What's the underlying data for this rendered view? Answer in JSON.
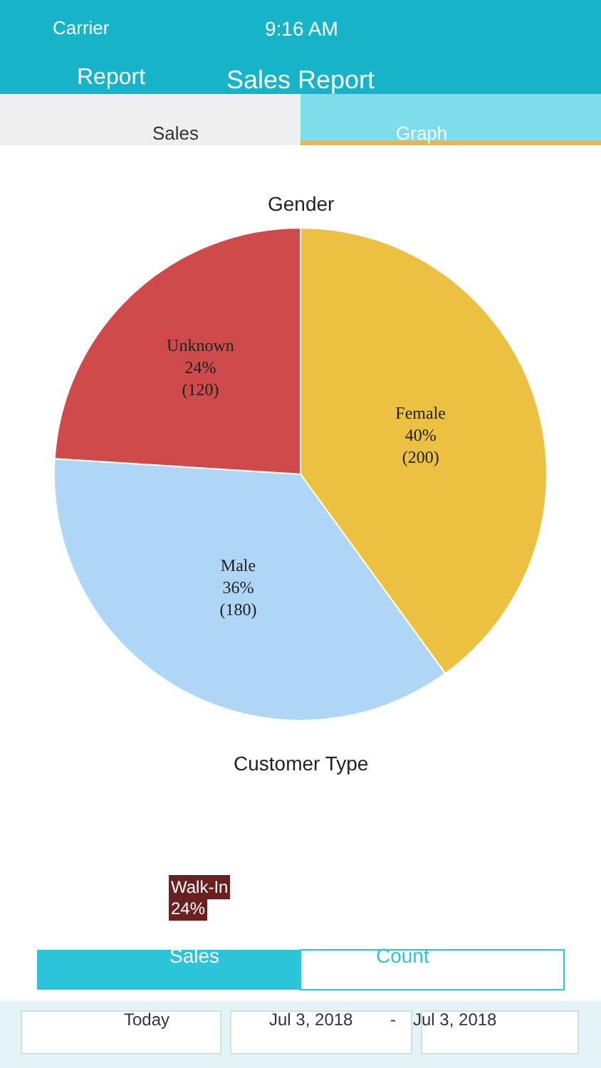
{
  "chart_data": [
    {
      "type": "other",
      "title": "Sales Report",
      "annotations": [
        "Carrier",
        "9:16 AM",
        "Report",
        "Sales",
        "Graph",
        "Customer Type",
        "Walk-In",
        "24%",
        "Sales",
        "Count",
        "Today",
        "Jul 3, 2018",
        "-",
        "Jul 3, 2018"
      ]
    },
    {
      "type": "pie",
      "title": "Gender",
      "categories": [
        "Female",
        "Male",
        "Unknown"
      ],
      "values": [
        200,
        180,
        120
      ],
      "colors": [
        "#ecc040",
        "#b0d6f5",
        "#cf4b4b"
      ],
      "value_labels": [
        "40%\n(200)",
        "36%\n(180)",
        "24%\n(120)"
      ],
      "legend": false
    }
  ]
}
